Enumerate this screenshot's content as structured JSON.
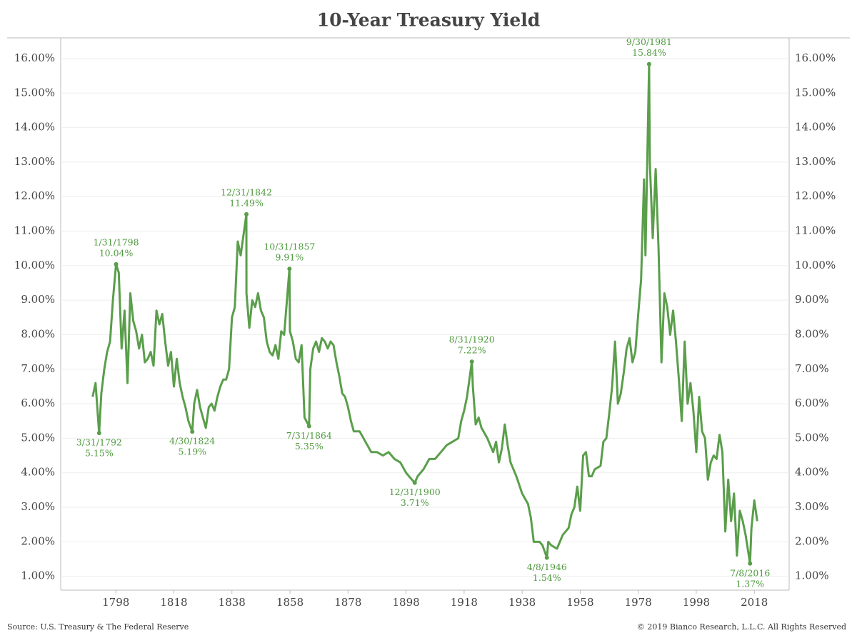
{
  "chart_data": {
    "type": "line",
    "title": "10-Year Treasury Yield",
    "source": "Source: U.S. Treasury & The Federal Reserve",
    "copyright": "© 2019 Bianco Research, L.L.C. All Rights Reserved",
    "xlim": [
      1779,
      2030
    ],
    "xticks": [
      1798,
      1818,
      1838,
      1858,
      1878,
      1898,
      1918,
      1938,
      1958,
      1978,
      1998,
      2018
    ],
    "ylim": [
      0.6,
      16.6
    ],
    "yticks": [
      {
        "value": 1,
        "label": "1.00%"
      },
      {
        "value": 2,
        "label": "2.00%"
      },
      {
        "value": 3,
        "label": "3.00%"
      },
      {
        "value": 4,
        "label": "4.00%"
      },
      {
        "value": 5,
        "label": "5.00%"
      },
      {
        "value": 6,
        "label": "6.00%"
      },
      {
        "value": 7,
        "label": "7.00%"
      },
      {
        "value": 8,
        "label": "8.00%"
      },
      {
        "value": 9,
        "label": "9.00%"
      },
      {
        "value": 10,
        "label": "10.00%"
      },
      {
        "value": 11,
        "label": "11.00%"
      },
      {
        "value": 12,
        "label": "12.00%"
      },
      {
        "value": 13,
        "label": "13.00%"
      },
      {
        "value": 14,
        "label": "14.00%"
      },
      {
        "value": 15,
        "label": "15.00%"
      },
      {
        "value": 16,
        "label": "16.00%"
      }
    ],
    "grid": true,
    "series": [
      {
        "name": "10-Year Treasury Yield",
        "color": "#5a9e4b",
        "x": [
          1790,
          1791,
          1792.25,
          1793,
          1794,
          1795,
          1796,
          1797,
          1798.08,
          1799,
          1800,
          1801,
          1802,
          1803,
          1804,
          1805,
          1806,
          1807,
          1808,
          1809,
          1810,
          1811,
          1812,
          1813,
          1814,
          1815,
          1816,
          1817,
          1818,
          1819,
          1820,
          1821,
          1822,
          1823,
          1824.33,
          1825,
          1826,
          1827,
          1828,
          1829,
          1830,
          1831,
          1832,
          1833,
          1834,
          1835,
          1836,
          1837,
          1838,
          1839,
          1840,
          1841,
          1842.99,
          1843,
          1844,
          1845,
          1846,
          1847,
          1848,
          1849,
          1850,
          1851,
          1852,
          1853,
          1854,
          1855,
          1856,
          1857.83,
          1858,
          1859,
          1860,
          1861,
          1862,
          1863,
          1864.58,
          1865,
          1866,
          1867,
          1868,
          1869,
          1870,
          1871,
          1872,
          1873,
          1874,
          1875,
          1876,
          1877,
          1878,
          1879,
          1880,
          1882,
          1884,
          1886,
          1888,
          1890,
          1892,
          1894,
          1896,
          1898,
          1899,
          1900.99,
          1902,
          1904,
          1906,
          1908,
          1910,
          1912,
          1914,
          1916,
          1917,
          1918,
          1919,
          1920.66,
          1921,
          1922,
          1923,
          1924,
          1926,
          1928,
          1929,
          1930,
          1931,
          1932,
          1933,
          1934,
          1936,
          1938,
          1940,
          1941,
          1942,
          1944,
          1945,
          1946.52,
          1947,
          1948,
          1950,
          1952,
          1954,
          1955,
          1956,
          1957,
          1958,
          1959,
          1960,
          1961,
          1962,
          1963,
          1965,
          1966,
          1967,
          1968,
          1969,
          1970,
          1971,
          1972,
          1973,
          1974,
          1975,
          1976,
          1977,
          1978,
          1979,
          1980,
          1980.5,
          1981.75,
          1982,
          1983,
          1984,
          1985,
          1986,
          1987,
          1988,
          1989,
          1990,
          1991,
          1992,
          1993,
          1994,
          1995,
          1996,
          1997,
          1998,
          1999,
          2000,
          2001,
          2002,
          2003,
          2004,
          2005,
          2006,
          2007,
          2008,
          2009,
          2010,
          2011,
          2012,
          2013,
          2014,
          2015,
          2016.52,
          2017,
          2018,
          2019
        ],
        "values": [
          6.2,
          6.6,
          5.15,
          6.3,
          7.0,
          7.5,
          7.8,
          9.0,
          10.04,
          9.8,
          7.6,
          8.7,
          6.6,
          9.2,
          8.4,
          8.1,
          7.6,
          8.0,
          7.2,
          7.3,
          7.5,
          7.1,
          8.7,
          8.3,
          8.6,
          7.8,
          7.1,
          7.5,
          6.5,
          7.3,
          6.6,
          6.2,
          5.9,
          5.5,
          5.19,
          6.0,
          6.4,
          5.9,
          5.6,
          5.3,
          5.9,
          6.0,
          5.8,
          6.2,
          6.5,
          6.7,
          6.7,
          7.0,
          8.5,
          8.8,
          10.7,
          10.3,
          11.49,
          9.2,
          8.2,
          9.0,
          8.8,
          9.2,
          8.7,
          8.5,
          7.8,
          7.5,
          7.4,
          7.7,
          7.3,
          8.1,
          8.0,
          9.91,
          8.1,
          7.8,
          7.3,
          7.2,
          7.7,
          5.6,
          5.35,
          7.0,
          7.6,
          7.8,
          7.5,
          7.9,
          7.8,
          7.6,
          7.8,
          7.7,
          7.2,
          6.8,
          6.3,
          6.2,
          5.9,
          5.5,
          5.2,
          5.2,
          4.9,
          4.6,
          4.6,
          4.5,
          4.6,
          4.4,
          4.3,
          4.0,
          3.9,
          3.71,
          3.9,
          4.1,
          4.4,
          4.4,
          4.6,
          4.8,
          4.9,
          5.0,
          5.5,
          5.8,
          6.2,
          7.22,
          6.5,
          5.4,
          5.6,
          5.3,
          5.0,
          4.6,
          4.9,
          4.3,
          4.7,
          5.4,
          4.8,
          4.3,
          3.9,
          3.4,
          3.1,
          2.7,
          2.0,
          2.0,
          1.9,
          1.54,
          2.0,
          1.9,
          1.8,
          2.2,
          2.4,
          2.8,
          3.0,
          3.6,
          2.9,
          4.5,
          4.6,
          3.9,
          3.9,
          4.1,
          4.2,
          4.9,
          5.0,
          5.7,
          6.5,
          7.8,
          6.0,
          6.3,
          6.9,
          7.6,
          7.9,
          7.2,
          7.5,
          8.6,
          9.6,
          12.5,
          10.3,
          15.84,
          13.0,
          10.8,
          12.8,
          10.5,
          7.2,
          9.2,
          8.8,
          8.0,
          8.7,
          7.8,
          6.7,
          5.5,
          7.8,
          6.0,
          6.6,
          5.8,
          4.6,
          6.2,
          5.2,
          5.0,
          3.8,
          4.3,
          4.5,
          4.4,
          5.1,
          4.6,
          2.3,
          3.8,
          2.6,
          3.4,
          1.6,
          2.9,
          2.6,
          2.2,
          1.37,
          2.4,
          3.2,
          2.6
        ]
      }
    ],
    "annotations": [
      {
        "x": 1792.25,
        "y": 5.15,
        "date": "3/31/1792",
        "label": "5.15%"
      },
      {
        "x": 1798.08,
        "y": 10.04,
        "date": "1/31/1798",
        "label": "10.04%"
      },
      {
        "x": 1824.33,
        "y": 5.19,
        "date": "4/30/1824",
        "label": "5.19%"
      },
      {
        "x": 1842.99,
        "y": 11.49,
        "date": "12/31/1842",
        "label": "11.49%"
      },
      {
        "x": 1857.83,
        "y": 9.91,
        "date": "10/31/1857",
        "label": "9.91%"
      },
      {
        "x": 1864.58,
        "y": 5.35,
        "date": "7/31/1864",
        "label": "5.35%"
      },
      {
        "x": 1900.99,
        "y": 3.71,
        "date": "12/31/1900",
        "label": "3.71%"
      },
      {
        "x": 1920.66,
        "y": 7.22,
        "date": "8/31/1920",
        "label": "7.22%"
      },
      {
        "x": 1946.52,
        "y": 1.54,
        "date": "4/8/1946",
        "label": "1.54%"
      },
      {
        "x": 1981.75,
        "y": 15.84,
        "date": "9/30/1981",
        "label": "15.84%"
      },
      {
        "x": 2016.52,
        "y": 1.37,
        "date": "7/8/2016",
        "label": "1.37%"
      }
    ]
  }
}
